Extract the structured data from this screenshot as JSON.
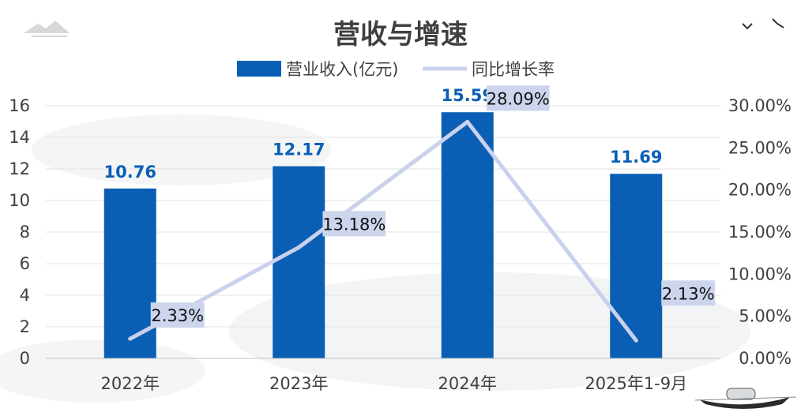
{
  "chart_data": {
    "type": "bar",
    "title": "营收与增速",
    "categories": [
      "2022年",
      "2023年",
      "2024年",
      "2025年1-9月"
    ],
    "series": [
      {
        "name": "营业收入(亿元)",
        "type": "bar",
        "axis": "left",
        "color": "#0a5fb4",
        "values": [
          10.76,
          12.17,
          15.59,
          11.69
        ],
        "labels": [
          "10.76",
          "12.17",
          "15.59",
          "11.69"
        ]
      },
      {
        "name": "同比增长率",
        "type": "line",
        "axis": "right",
        "color": "#c9d1ec",
        "values": [
          2.33,
          13.18,
          28.09,
          2.13
        ],
        "labels": [
          "2.33%",
          "13.18%",
          "28.09%",
          "2.13%"
        ]
      }
    ],
    "y_left": {
      "ylim": [
        0,
        16
      ],
      "ticks": [
        "0",
        "2",
        "4",
        "6",
        "8",
        "10",
        "12",
        "14",
        "16"
      ]
    },
    "y_right": {
      "ylim": [
        0,
        30
      ],
      "ticks": [
        "0.00%",
        "5.00%",
        "10.00%",
        "15.00%",
        "20.00%",
        "25.00%",
        "30.00%"
      ]
    },
    "legend": "top",
    "grid": true
  }
}
